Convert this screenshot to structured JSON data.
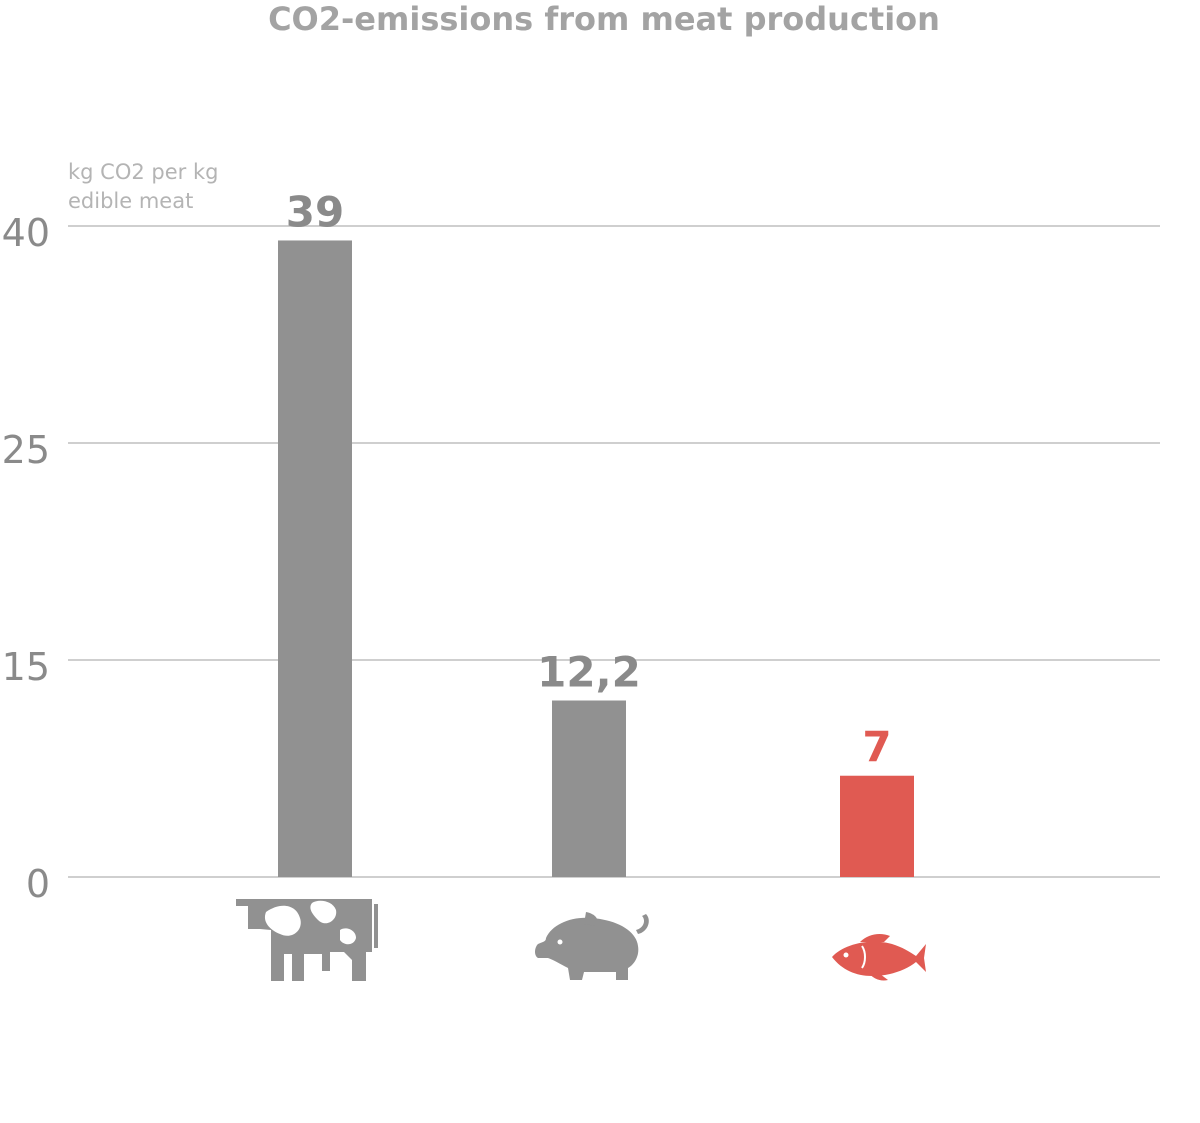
{
  "chart_data": {
    "type": "bar",
    "title": "CO2-emissions from meat production",
    "ylabel_lines": [
      "kg CO2 per kg",
      "edible meat"
    ],
    "yticks": [
      0,
      15,
      25,
      40
    ],
    "categories": [
      "cow-icon",
      "pig-icon",
      "fish-icon"
    ],
    "values": [
      39,
      12.2,
      7
    ],
    "value_labels": [
      "39",
      "12,2",
      "7"
    ],
    "colors": [
      "#919191",
      "#919191",
      "#e05a52"
    ],
    "grid": true
  }
}
